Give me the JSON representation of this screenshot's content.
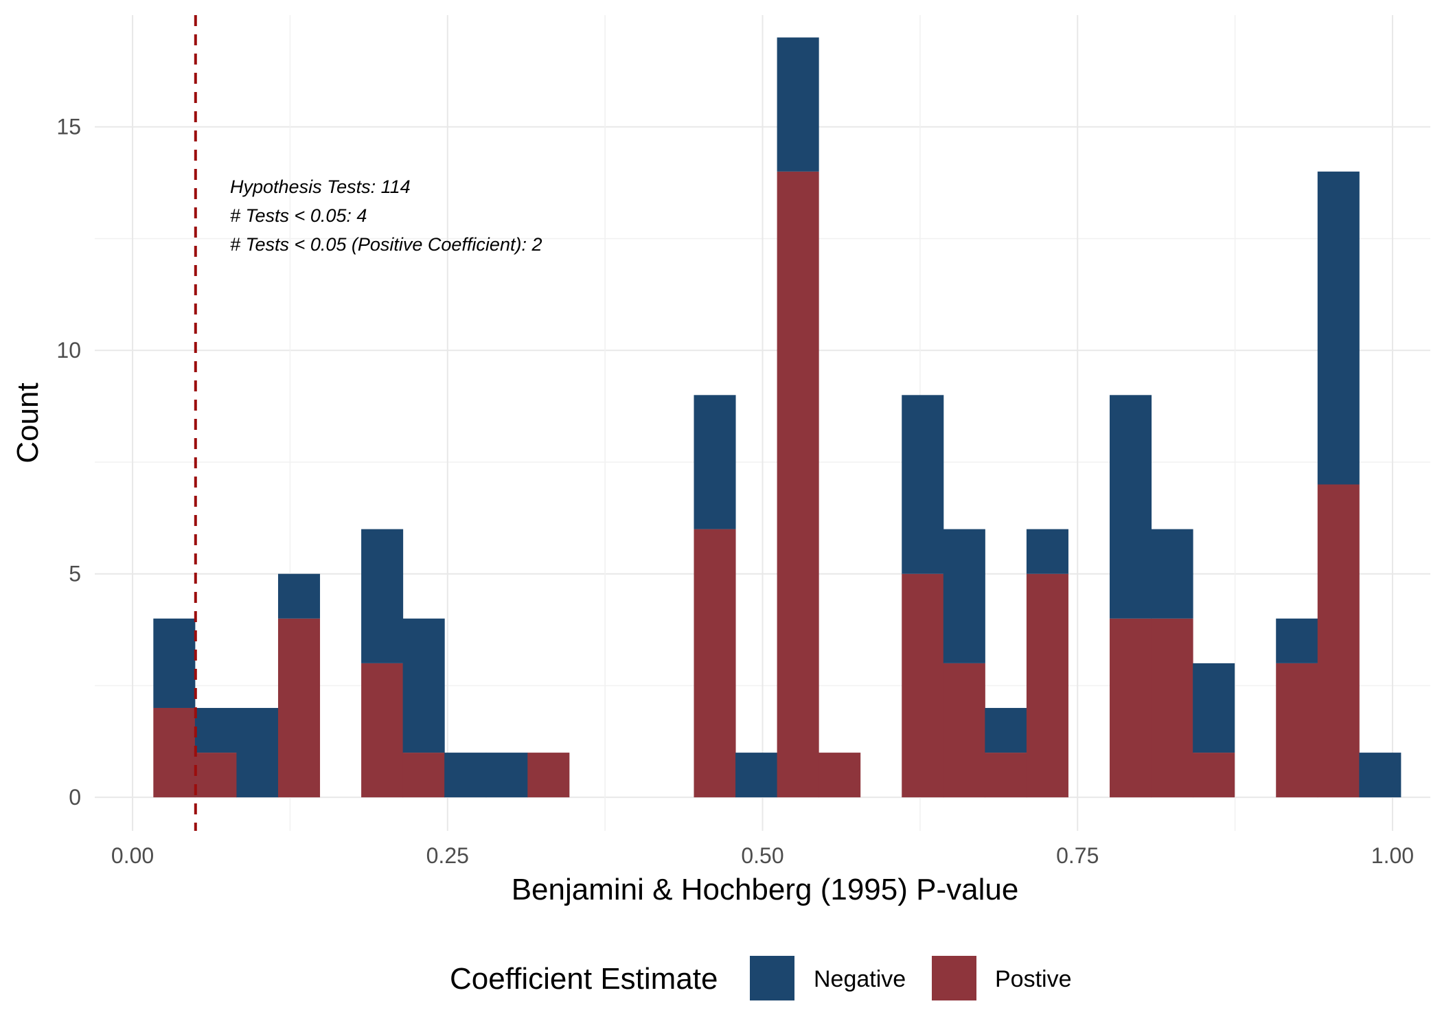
{
  "chart_data": {
    "type": "bar",
    "stacked": true,
    "xlabel": "Benjamini & Hochberg (1995) P-value",
    "ylabel": "Count",
    "xlim": [
      -0.03,
      1.03
    ],
    "ylim": [
      -0.75,
      17.5
    ],
    "x_ticks": [
      0.0,
      0.25,
      0.5,
      0.75,
      1.0
    ],
    "x_tick_labels": [
      "0.00",
      "0.25",
      "0.50",
      "0.75",
      "1.00"
    ],
    "y_ticks": [
      0,
      5,
      10,
      15
    ],
    "y_tick_labels": [
      "0",
      "5",
      "10",
      "15"
    ],
    "grid": true,
    "bin_width": 0.033,
    "bins": [
      0.033,
      0.066,
      0.099,
      0.132,
      0.165,
      0.198,
      0.231,
      0.264,
      0.297,
      0.33,
      0.363,
      0.396,
      0.429,
      0.462,
      0.495,
      0.528,
      0.561,
      0.594,
      0.627,
      0.66,
      0.693,
      0.726,
      0.759,
      0.792,
      0.825,
      0.858,
      0.891,
      0.924,
      0.957,
      0.99
    ],
    "series": [
      {
        "name": "Postive",
        "color": "#8E353C",
        "values": [
          2,
          1,
          0,
          4,
          0,
          3,
          1,
          0,
          0,
          1,
          0,
          0,
          0,
          6,
          0,
          14,
          1,
          0,
          5,
          3,
          1,
          5,
          0,
          4,
          4,
          1,
          0,
          3,
          7,
          0
        ]
      },
      {
        "name": "Negative",
        "color": "#1C466E",
        "values": [
          2,
          1,
          2,
          1,
          0,
          3,
          3,
          1,
          1,
          0,
          0,
          0,
          0,
          3,
          1,
          3,
          0,
          0,
          4,
          3,
          1,
          1,
          0,
          5,
          2,
          2,
          0,
          1,
          7,
          1
        ]
      }
    ],
    "reference_line": {
      "x": 0.05,
      "color": "#9B0D0D",
      "style": "dashed"
    },
    "annotations": [
      "Hypothesis Tests: 114",
      "# Tests < 0.05: 4",
      "# Tests < 0.05 (Positive Coefficient): 2"
    ],
    "legend": {
      "title": "Coefficient Estimate",
      "position": "bottom",
      "entries": [
        {
          "label": "Negative",
          "color": "#1C466E"
        },
        {
          "label": "Postive",
          "color": "#8E353C"
        }
      ]
    }
  }
}
